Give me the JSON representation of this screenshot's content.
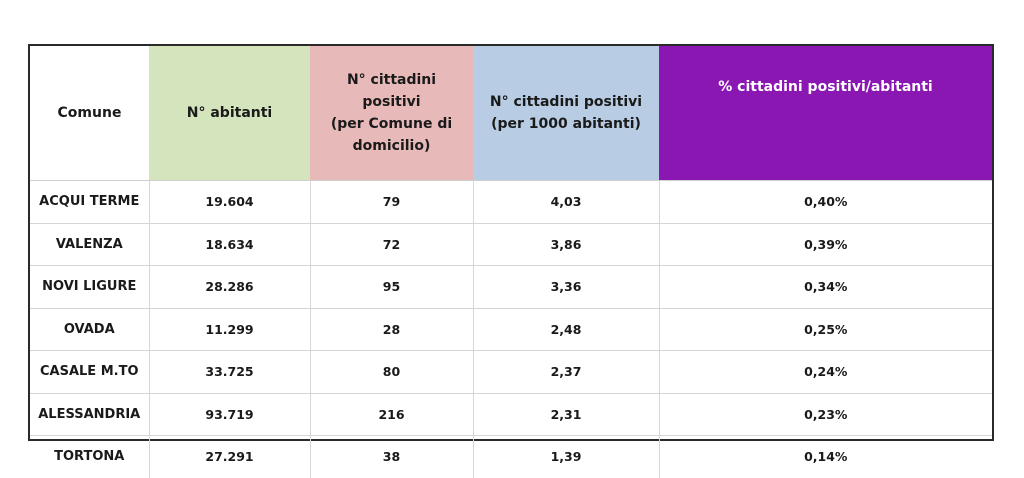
{
  "table": {
    "headers": {
      "comune": "Comune",
      "abitanti": "N° abitanti",
      "positivi_line1": "N° cittadini",
      "positivi_line2": "positivi",
      "positivi_line3": "(per Comune di",
      "positivi_line4": "domicilio)",
      "per1000_line1": "N° cittadini positivi",
      "per1000_line2": "(per 1000 abitanti)",
      "percent": "% cittadini positivi/abitanti"
    },
    "rows": [
      {
        "comune": "ACQUI TERME",
        "abitanti": "19.604",
        "positivi": "79",
        "per1000": "4,03",
        "percent": "0,40%"
      },
      {
        "comune": "VALENZA",
        "abitanti": "18.634",
        "positivi": "72",
        "per1000": "3,86",
        "percent": "0,39%"
      },
      {
        "comune": "NOVI LIGURE",
        "abitanti": "28.286",
        "positivi": "95",
        "per1000": "3,36",
        "percent": "0,34%"
      },
      {
        "comune": "OVADA",
        "abitanti": "11.299",
        "positivi": "28",
        "per1000": "2,48",
        "percent": "0,25%"
      },
      {
        "comune": "CASALE M.TO",
        "abitanti": "33.725",
        "positivi": "80",
        "per1000": "2,37",
        "percent": "0,24%"
      },
      {
        "comune": "ALESSANDRIA",
        "abitanti": "93.719",
        "positivi": "216",
        "per1000": "2,31",
        "percent": "0,23%"
      },
      {
        "comune": "TORTONA",
        "abitanti": "27.291",
        "positivi": "38",
        "per1000": "1,39",
        "percent": "0,14%"
      }
    ]
  },
  "colors": {
    "abitanti_header": "#d4e4bc",
    "positivi_header": "#e7b9b9",
    "per1000_header": "#b8cde4",
    "percent_header": "#8b17b3"
  }
}
